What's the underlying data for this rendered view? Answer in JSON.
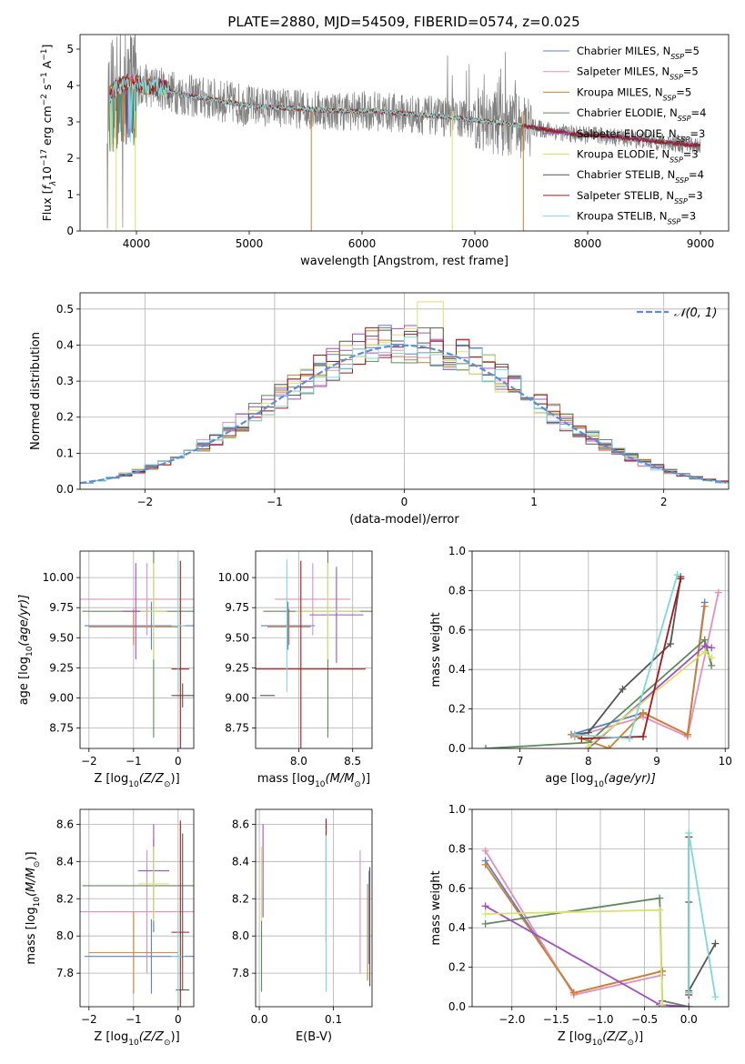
{
  "figure_title": "PLATE=2880, MJD=54509, FIBERID=0574, z=0.025",
  "colors": {
    "chabrier_miles": "#5b7fd9",
    "salpeter_miles": "#e58fb5",
    "kroupa_miles": "#d07f2a",
    "chabrier_elodie": "#5c8a5c",
    "salpeter_elodie": "#a14fc3",
    "kroupa_elodie": "#d8e36a",
    "chabrier_stelib": "#555555",
    "salpeter_stelib": "#a3181d",
    "kroupa_stelib": "#7fd8d8",
    "spectrum": "#808080",
    "normal": "#5b8ed6"
  },
  "chart_data": [
    {
      "id": "spectrum",
      "type": "line",
      "title": "PLATE=2880, MJD=54509, FIBERID=0574, z=0.025",
      "xlabel": "wavelength [Angstrom, rest frame]",
      "ylabel_parts": [
        "Flux [",
        "f",
        "λ",
        "10",
        "−17",
        " erg cm",
        "−2",
        " s",
        "−1",
        " A",
        "−1",
        "]"
      ],
      "xlim": [
        3500,
        9250
      ],
      "ylim": [
        0,
        5.4
      ],
      "xticks": [
        4000,
        5000,
        6000,
        7000,
        8000,
        9000
      ],
      "yticks": [
        0,
        1,
        2,
        3,
        4,
        5
      ],
      "legend": "top-right",
      "series": [
        {
          "name": "Chabrier MILES, N",
          "sub": "SSP",
          "suffix": "=5",
          "color_key": "chabrier_miles"
        },
        {
          "name": "Salpeter MILES, N",
          "sub": "SSP",
          "suffix": "=5",
          "color_key": "salpeter_miles"
        },
        {
          "name": "Kroupa MILES, N",
          "sub": "SSP",
          "suffix": "=5",
          "color_key": "kroupa_miles"
        },
        {
          "name": "Chabrier ELODIE, N",
          "sub": "SSP",
          "suffix": "=4",
          "color_key": "chabrier_elodie"
        },
        {
          "name": "Salpeter ELODIE, N",
          "sub": "SSP",
          "suffix": "=3",
          "color_key": "salpeter_elodie"
        },
        {
          "name": "Kroupa ELODIE, N",
          "sub": "SSP",
          "suffix": "=3",
          "color_key": "kroupa_elodie"
        },
        {
          "name": "Chabrier STELIB, N",
          "sub": "SSP",
          "suffix": "=4",
          "color_key": "chabrier_stelib"
        },
        {
          "name": "Salpeter STELIB, N",
          "sub": "SSP",
          "suffix": "=3",
          "color_key": "salpeter_stelib"
        },
        {
          "name": "Kroupa STELIB, N",
          "sub": "SSP",
          "suffix": "=3",
          "color_key": "kroupa_stelib"
        }
      ],
      "continuum": [
        [
          3750,
          3.7
        ],
        [
          3850,
          4.0
        ],
        [
          3950,
          4.1
        ],
        [
          4050,
          4.0
        ],
        [
          4200,
          3.95
        ],
        [
          4400,
          3.75
        ],
        [
          4600,
          3.65
        ],
        [
          4800,
          3.55
        ],
        [
          5000,
          3.45
        ],
        [
          5200,
          3.4
        ],
        [
          5500,
          3.35
        ],
        [
          5800,
          3.3
        ],
        [
          6100,
          3.3
        ],
        [
          6400,
          3.22
        ],
        [
          6700,
          3.15
        ],
        [
          7000,
          3.05
        ],
        [
          7300,
          2.95
        ],
        [
          7600,
          2.8
        ],
        [
          7900,
          2.65
        ],
        [
          8200,
          2.6
        ],
        [
          8500,
          2.5
        ],
        [
          8800,
          2.4
        ],
        [
          9000,
          2.35
        ]
      ]
    },
    {
      "id": "residuals",
      "type": "step",
      "xlabel": "(data-model)/error",
      "ylabel": "Normed distribution",
      "xlim": [
        -2.5,
        2.5
      ],
      "ylim": [
        0,
        0.545
      ],
      "xticks": [
        -2,
        -1,
        0,
        1,
        2
      ],
      "yticks": [
        0.0,
        0.1,
        0.2,
        0.3,
        0.4,
        0.5
      ],
      "grid": true,
      "legend_label": "𝒩(0, 1)",
      "legend": "top-right",
      "bin_width": 0.1
    },
    {
      "id": "age_vs_Z",
      "type": "errorbar",
      "xlabel_parts": [
        "Z [log",
        "10",
        "(Z/Z",
        "⊙",
        ")]"
      ],
      "ylabel_parts": [
        "age  [log",
        "10",
        "(age/yr)]"
      ],
      "xlim": [
        -2.2,
        0.35
      ],
      "ylim": [
        8.58,
        10.22
      ],
      "xticks": [
        -2,
        -1,
        0
      ],
      "yticks": [
        8.75,
        9.0,
        9.25,
        9.5,
        9.75,
        10.0
      ],
      "grid": true,
      "points": [
        {
          "c": "chabrier_miles",
          "x": -0.6,
          "xe": 1.5,
          "y": 9.6,
          "ye": 0.2
        },
        {
          "c": "salpeter_miles",
          "x": -0.7,
          "xe": 1.5,
          "y": 9.82,
          "ye": 0.3
        },
        {
          "c": "kroupa_miles",
          "x": -1.0,
          "xe": 1.0,
          "y": 9.59,
          "ye": 0.15
        },
        {
          "c": "chabrier_elodie",
          "x": -0.55,
          "xe": 1.6,
          "y": 9.72,
          "ye": 1.05
        },
        {
          "c": "salpeter_elodie",
          "x": -0.95,
          "xe": 0.3,
          "y": 9.72,
          "ye": 0.4
        },
        {
          "c": "kroupa_elodie",
          "x": -0.55,
          "xe": 0.3,
          "y": 9.72,
          "ye": 0.4
        },
        {
          "c": "chabrier_stelib",
          "x": 0.1,
          "xe": 0.25,
          "y": 9.02,
          "ye": 0.1
        },
        {
          "c": "salpeter_stelib",
          "x": 0.05,
          "xe": 0.2,
          "y": 9.24,
          "ye": 0.9
        },
        {
          "c": "kroupa_stelib",
          "x": 0.0,
          "xe": 0.15,
          "y": 9.6,
          "ye": 0.55
        }
      ]
    },
    {
      "id": "age_vs_mass",
      "type": "errorbar",
      "xlabel_parts": [
        "mass [log",
        "10",
        "(M/M",
        "⊙",
        ")]"
      ],
      "ylabel": "",
      "xlim": [
        7.6,
        8.68
      ],
      "ylim": [
        8.58,
        10.22
      ],
      "xticks": [
        8.0,
        8.5
      ],
      "yticks": [
        8.75,
        9.0,
        9.25,
        9.5,
        9.75,
        10.0
      ],
      "grid": true,
      "points": [
        {
          "c": "chabrier_miles",
          "x": 7.9,
          "xe": 0.25,
          "y": 9.6,
          "ye": 0.2
        },
        {
          "c": "salpeter_miles",
          "x": 8.13,
          "xe": 0.35,
          "y": 9.82,
          "ye": 0.3
        },
        {
          "c": "kroupa_miles",
          "x": 7.91,
          "xe": 0.2,
          "y": 9.59,
          "ye": 0.15
        },
        {
          "c": "chabrier_elodie",
          "x": 8.27,
          "xe": 0.6,
          "y": 9.72,
          "ye": 1.05
        },
        {
          "c": "salpeter_elodie",
          "x": 8.35,
          "xe": 0.25,
          "y": 9.69,
          "ye": 0.4
        },
        {
          "c": "kroupa_elodie",
          "x": 8.27,
          "xe": 0.3,
          "y": 9.72,
          "ye": 0.4
        },
        {
          "c": "chabrier_stelib",
          "x": 7.71,
          "xe": 0.0,
          "y": 9.02,
          "ye": 0.0
        },
        {
          "c": "salpeter_stelib",
          "x": 8.02,
          "xe": 0.6,
          "y": 9.24,
          "ye": 0.9
        },
        {
          "c": "kroupa_stelib",
          "x": 7.89,
          "xe": 0.0,
          "y": 9.6,
          "ye": 0.55
        }
      ]
    },
    {
      "id": "weight_vs_age",
      "type": "line",
      "xlabel_parts": [
        "age  [log",
        "10",
        "(age/yr)]"
      ],
      "ylabel": "mass weight",
      "xlim": [
        6.3,
        10.05
      ],
      "ylim": [
        0,
        1.0
      ],
      "xticks": [
        7,
        8,
        9,
        10
      ],
      "yticks": [
        0.0,
        0.2,
        0.4,
        0.6,
        0.8,
        1.0
      ],
      "grid": true,
      "series": [
        {
          "c": "chabrier_miles",
          "pts": [
            [
              7.75,
              0.07
            ],
            [
              8.8,
              0.18
            ],
            [
              9.45,
              0.07
            ],
            [
              9.7,
              0.74
            ]
          ]
        },
        {
          "c": "salpeter_miles",
          "pts": [
            [
              7.8,
              0.06
            ],
            [
              8.8,
              0.16
            ],
            [
              9.45,
              0.06
            ],
            [
              9.9,
              0.79
            ]
          ]
        },
        {
          "c": "kroupa_miles",
          "pts": [
            [
              7.75,
              0.07
            ],
            [
              8.3,
              0.0
            ],
            [
              8.8,
              0.18
            ],
            [
              9.45,
              0.07
            ],
            [
              9.7,
              0.72
            ]
          ]
        },
        {
          "c": "chabrier_elodie",
          "pts": [
            [
              6.5,
              0.0
            ],
            [
              8.0,
              0.03
            ],
            [
              9.7,
              0.55
            ],
            [
              9.8,
              0.42
            ]
          ]
        },
        {
          "c": "salpeter_elodie",
          "pts": [
            [
              8.0,
              0.0
            ],
            [
              9.7,
              0.52
            ],
            [
              9.8,
              0.51
            ]
          ]
        },
        {
          "c": "kroupa_elodie",
          "pts": [
            [
              8.0,
              0.01
            ],
            [
              9.7,
              0.49
            ],
            [
              9.8,
              0.46
            ]
          ]
        },
        {
          "c": "chabrier_stelib",
          "pts": [
            [
              7.8,
              0.07
            ],
            [
              8.0,
              0.08
            ],
            [
              8.5,
              0.3
            ],
            [
              9.2,
              0.53
            ],
            [
              9.35,
              0.87
            ]
          ]
        },
        {
          "c": "salpeter_stelib",
          "pts": [
            [
              7.9,
              0.05
            ],
            [
              8.8,
              0.06
            ],
            [
              9.35,
              0.86
            ]
          ]
        },
        {
          "c": "kroupa_stelib",
          "pts": [
            [
              7.8,
              0.07
            ],
            [
              8.6,
              0.05
            ],
            [
              9.3,
              0.88
            ]
          ]
        }
      ]
    },
    {
      "id": "mass_vs_Z",
      "type": "errorbar",
      "xlabel_parts": [
        "Z [log",
        "10",
        "(Z/Z",
        "⊙",
        ")]"
      ],
      "ylabel_parts": [
        "mass [log",
        "10",
        "(M/M",
        "⊙",
        ")]"
      ],
      "xlim": [
        -2.2,
        0.35
      ],
      "ylim": [
        7.62,
        8.68
      ],
      "xticks": [
        -2,
        -1,
        0
      ],
      "yticks": [
        7.8,
        8.0,
        8.2,
        8.4,
        8.6
      ],
      "grid": true,
      "points": [
        {
          "c": "chabrier_miles",
          "x": -0.6,
          "xe": 1.5,
          "y": 7.89,
          "ye": 0.2
        },
        {
          "c": "salpeter_miles",
          "x": -0.7,
          "xe": 1.5,
          "y": 8.13,
          "ye": 0.33
        },
        {
          "c": "kroupa_miles",
          "x": -1.0,
          "xe": 1.0,
          "y": 7.91,
          "ye": 0.22
        },
        {
          "c": "chabrier_elodie",
          "x": -0.55,
          "xe": 1.6,
          "y": 8.27,
          "ye": 0.25
        },
        {
          "c": "salpeter_elodie",
          "x": -0.55,
          "xe": 0.35,
          "y": 8.35,
          "ye": 0.25
        },
        {
          "c": "kroupa_elodie",
          "x": -0.55,
          "xe": 0.35,
          "y": 8.28,
          "ye": 0.2
        },
        {
          "c": "chabrier_stelib",
          "x": 0.1,
          "xe": 0.15,
          "y": 7.71,
          "ye": 0.0
        },
        {
          "c": "salpeter_stelib",
          "x": 0.05,
          "xe": 0.2,
          "y": 8.02,
          "ye": 0.6
        },
        {
          "c": "kroupa_stelib",
          "x": 0.0,
          "xe": 0.15,
          "y": 7.89,
          "ye": 0.25
        }
      ],
      "vlines": [
        {
          "c": "chabrier_stelib",
          "x": 0.1,
          "y0": 7.71,
          "y1": 8.55
        }
      ]
    },
    {
      "id": "mass_vs_ebv",
      "type": "errorbar",
      "xlabel": "E(B-V)",
      "ylabel": "",
      "xlim": [
        -0.005,
        0.152
      ],
      "ylim": [
        7.62,
        8.68
      ],
      "xticks": [
        0.0,
        0.1
      ],
      "yticks": [
        7.8,
        8.0,
        8.2,
        8.4,
        8.6
      ],
      "grid": true,
      "points": [
        {
          "c": "chabrier_miles",
          "x": 0.148,
          "y": 8.1,
          "ye": 0.25
        },
        {
          "c": "salpeter_miles",
          "x": 0.136,
          "y": 8.13,
          "ye": 0.33
        },
        {
          "c": "kroupa_miles",
          "x": 0.146,
          "y": 8.02,
          "ye": 0.26
        },
        {
          "c": "chabrier_elodie",
          "x": 0.003,
          "y": 8.0,
          "ye": 0.3
        },
        {
          "c": "salpeter_elodie",
          "x": 0.005,
          "y": 8.35,
          "ye": 0.25
        },
        {
          "c": "kroupa_elodie",
          "x": 0.003,
          "y": 8.28,
          "ye": 0.2
        },
        {
          "c": "chabrier_stelib",
          "x": 0.149,
          "y": 8.05,
          "ye": 0.32
        },
        {
          "c": "salpeter_stelib",
          "x": 0.09,
          "y": 8.3,
          "ye": 0.33
        },
        {
          "c": "kroupa_stelib",
          "x": 0.09,
          "y": 8.12,
          "ye": 0.42
        }
      ]
    },
    {
      "id": "weight_vs_Z",
      "type": "line",
      "xlabel_parts": [
        "Z [log",
        "10",
        "(Z/Z",
        "⊙",
        ")]"
      ],
      "ylabel": "mass weight",
      "xlim": [
        -2.45,
        0.45
      ],
      "ylim": [
        0,
        1.0
      ],
      "xticks": [
        -2.0,
        -1.5,
        -1.0,
        -0.5,
        0.0
      ],
      "yticks": [
        0.0,
        0.2,
        0.4,
        0.6,
        0.8,
        1.0
      ],
      "grid": true,
      "series": [
        {
          "c": "chabrier_miles",
          "pts": [
            [
              -2.3,
              0.74
            ],
            [
              -1.3,
              0.07
            ],
            [
              -0.3,
              0.18
            ]
          ]
        },
        {
          "c": "salpeter_miles",
          "pts": [
            [
              -2.3,
              0.79
            ],
            [
              -1.3,
              0.06
            ],
            [
              -0.3,
              0.16
            ]
          ]
        },
        {
          "c": "kroupa_miles",
          "pts": [
            [
              -2.3,
              0.72
            ],
            [
              -1.3,
              0.07
            ],
            [
              -0.3,
              0.18
            ]
          ]
        },
        {
          "c": "chabrier_elodie",
          "pts": [
            [
              -2.3,
              0.42
            ],
            [
              -0.33,
              0.55
            ],
            [
              -0.3,
              0.03
            ],
            [
              0.0,
              0.0
            ]
          ]
        },
        {
          "c": "salpeter_elodie",
          "pts": [
            [
              -2.3,
              0.51
            ],
            [
              -0.33,
              0.01
            ],
            [
              0.0,
              0.0
            ]
          ]
        },
        {
          "c": "kroupa_elodie",
          "pts": [
            [
              -2.3,
              0.47
            ],
            [
              -0.33,
              0.49
            ],
            [
              -0.3,
              0.01
            ]
          ]
        },
        {
          "c": "chabrier_stelib",
          "pts": [
            [
              0.0,
              0.07
            ],
            [
              0.0,
              0.53
            ],
            [
              0.0,
              0.08
            ],
            [
              0.3,
              0.32
            ]
          ]
        },
        {
          "c": "salpeter_stelib",
          "pts": [
            [
              0.0,
              0.06
            ],
            [
              0.0,
              0.86
            ]
          ]
        },
        {
          "c": "kroupa_stelib",
          "pts": [
            [
              0.0,
              0.07
            ],
            [
              0.0,
              0.88
            ],
            [
              0.3,
              0.05
            ]
          ]
        }
      ]
    }
  ]
}
